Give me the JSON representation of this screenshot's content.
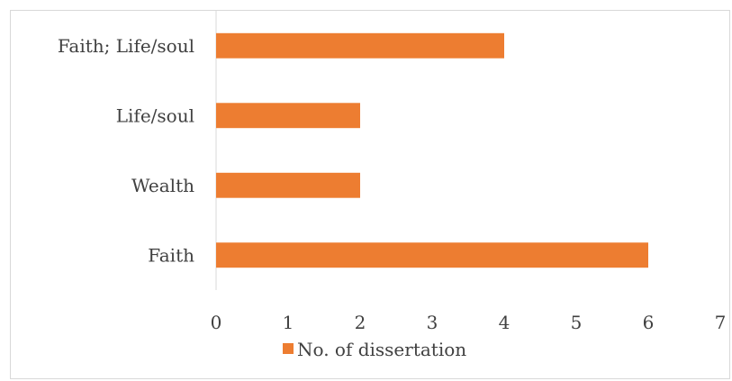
{
  "chart_data": {
    "type": "bar",
    "orientation": "horizontal",
    "categories": [
      "Faith",
      "Wealth",
      "Life/soul",
      "Faith; Life/soul"
    ],
    "series": [
      {
        "name": "No. of dissertation",
        "values": [
          6,
          2,
          2,
          4
        ]
      }
    ],
    "xlim": [
      0,
      7
    ],
    "xticks": [
      "0",
      "1",
      "2",
      "3",
      "4",
      "5",
      "6",
      "7"
    ],
    "grid": false,
    "legend_position": "bottom",
    "colors": {
      "bar": "#ED7D31",
      "axis": "#d9d9d9",
      "text": "#404040"
    }
  }
}
